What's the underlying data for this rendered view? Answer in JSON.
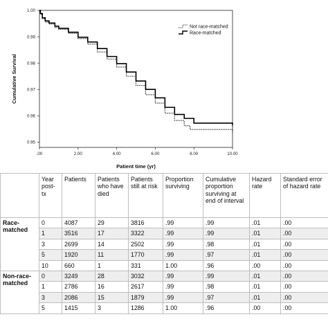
{
  "chart_data": {
    "type": "line",
    "title": "",
    "xlabel": "Patient time (yr)",
    "ylabel": "Cumulative Survival",
    "xlim": [
      0,
      10
    ],
    "ylim": [
      0.948,
      1.0
    ],
    "x_ticks": [
      {
        "value": 0,
        "label": ".00"
      },
      {
        "value": 2,
        "label": "2.00"
      },
      {
        "value": 4,
        "label": "4.00"
      },
      {
        "value": 6,
        "label": "6.00"
      },
      {
        "value": 8,
        "label": "8.00"
      },
      {
        "value": 10,
        "label": "10.00"
      }
    ],
    "y_ticks": [
      {
        "value": 0.95,
        "label": "0.95"
      },
      {
        "value": 0.96,
        "label": "0.96"
      },
      {
        "value": 0.97,
        "label": "0.97"
      },
      {
        "value": 0.98,
        "label": "0.98"
      },
      {
        "value": 0.99,
        "label": "0.99"
      },
      {
        "value": 1.0,
        "label": "1.00"
      }
    ],
    "grid": false,
    "legend_position": "top-right",
    "series": [
      {
        "name": "Not race-matched",
        "style": "dotted",
        "color": "#333333",
        "points": [
          [
            0,
            1.0
          ],
          [
            0.05,
            0.9985
          ],
          [
            0.15,
            0.9968
          ],
          [
            0.3,
            0.9955
          ],
          [
            0.5,
            0.9948
          ],
          [
            0.8,
            0.9935
          ],
          [
            1.0,
            0.9928
          ],
          [
            1.5,
            0.9913
          ],
          [
            2.0,
            0.9893
          ],
          [
            2.5,
            0.9872
          ],
          [
            3.0,
            0.9842
          ],
          [
            3.5,
            0.9815
          ],
          [
            4.0,
            0.9785
          ],
          [
            4.5,
            0.975
          ],
          [
            5.0,
            0.9715
          ],
          [
            5.5,
            0.968
          ],
          [
            6.0,
            0.9648
          ],
          [
            6.5,
            0.961
          ],
          [
            7.0,
            0.9582
          ],
          [
            7.5,
            0.9562
          ],
          [
            7.8,
            0.9548
          ],
          [
            8.5,
            0.9548
          ],
          [
            9.0,
            0.9548
          ],
          [
            10.0,
            0.954
          ]
        ]
      },
      {
        "name": "Race-matched",
        "style": "solid",
        "color": "#000000",
        "points": [
          [
            0,
            1.0
          ],
          [
            0.05,
            0.9988
          ],
          [
            0.15,
            0.9972
          ],
          [
            0.3,
            0.996
          ],
          [
            0.5,
            0.9952
          ],
          [
            0.8,
            0.994
          ],
          [
            1.0,
            0.9932
          ],
          [
            1.5,
            0.9917
          ],
          [
            2.0,
            0.9898
          ],
          [
            2.5,
            0.988
          ],
          [
            3.0,
            0.9855
          ],
          [
            3.5,
            0.9825
          ],
          [
            4.0,
            0.9798
          ],
          [
            4.5,
            0.9766
          ],
          [
            5.0,
            0.9732
          ],
          [
            5.5,
            0.97
          ],
          [
            6.0,
            0.9668
          ],
          [
            6.5,
            0.9632
          ],
          [
            7.0,
            0.9605
          ],
          [
            7.5,
            0.959
          ],
          [
            8.0,
            0.9572
          ],
          [
            9.0,
            0.9572
          ],
          [
            10.0,
            0.9565
          ]
        ]
      }
    ]
  },
  "table": {
    "headers": [
      "",
      "Year post-tx",
      "Patients",
      "Patients who have died",
      "Patients still at risk",
      "Proportion surviving",
      "Cumulative proportion surviving at end of interval",
      "Hazard rate",
      "Standard error of hazard rate"
    ],
    "groups": [
      {
        "label": "Race-matched",
        "rows": [
          [
            "0",
            "4087",
            "29",
            "3816",
            ".99",
            ".99",
            ".01",
            ".00"
          ],
          [
            "1",
            "3516",
            "17",
            "3322",
            ".99",
            ".99",
            ".01",
            ".00"
          ],
          [
            "3",
            "2699",
            "14",
            "2502",
            ".99",
            ".98",
            ".01",
            ".00"
          ],
          [
            "5",
            "1920",
            "11",
            "1770",
            ".99",
            ".97",
            ".01",
            ".00"
          ],
          [
            "10",
            "660",
            "1",
            "331",
            "1.00",
            ".96",
            ".00",
            ".00"
          ]
        ]
      },
      {
        "label": "Non-race-matched",
        "rows": [
          [
            "0",
            "3249",
            "28",
            "3032",
            ".99",
            ".99",
            ".01",
            ".00"
          ],
          [
            "1",
            "2786",
            "16",
            "2617",
            ".99",
            ".98",
            ".01",
            ".00"
          ],
          [
            "3",
            "2086",
            "15",
            "1879",
            ".99",
            ".97",
            ".01",
            ".00"
          ],
          [
            "5",
            "1415",
            "3",
            "1286",
            "1.00",
            ".96",
            ".00",
            ".00"
          ]
        ]
      }
    ]
  }
}
